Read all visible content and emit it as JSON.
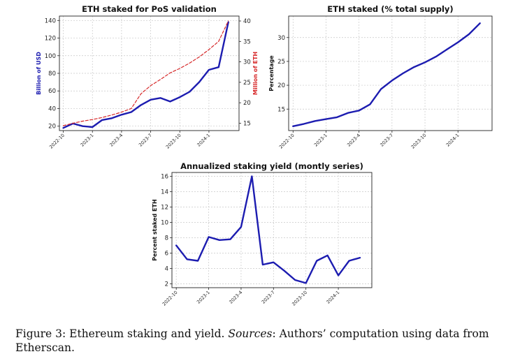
{
  "caption": {
    "label": "Figure 3:",
    "text1": "Ethereum staking and yield.",
    "sources_label": "Sources",
    "text2": ": Authors’ computation using data from Etherscan."
  },
  "chart_data": [
    {
      "type": "line",
      "title": "ETH staked for PoS validation",
      "xlabel": "",
      "x_ticks": [
        "2022-10",
        "2023-1",
        "2023-4",
        "2023-7",
        "2023-10",
        "2024-1"
      ],
      "grid": true,
      "y_left": {
        "label": "Billion of USD",
        "color": "#1c1cb0",
        "ylim": [
          15,
          145
        ],
        "ticks": [
          20,
          40,
          60,
          80,
          100,
          120,
          140
        ]
      },
      "y_right": {
        "label": "Million of ETH",
        "color": "#d62728",
        "ylim": [
          13.2,
          41.2
        ],
        "ticks": [
          15,
          20,
          25,
          30,
          35,
          40
        ]
      },
      "series": [
        {
          "axis": "left",
          "style": "solid",
          "color": "#1c1cb0",
          "x": [
            "2022-10",
            "2022-11",
            "2022-12",
            "2023-01",
            "2023-02",
            "2023-03",
            "2023-04",
            "2023-05",
            "2023-06",
            "2023-07",
            "2023-08",
            "2023-09",
            "2023-10",
            "2023-11",
            "2023-12",
            "2024-01",
            "2024-02",
            "2024-03"
          ],
          "values": [
            18,
            23,
            20,
            19,
            27,
            29,
            33,
            36,
            44,
            50,
            52,
            48,
            53,
            59,
            70,
            84,
            87,
            138
          ]
        },
        {
          "axis": "right",
          "style": "dashed",
          "color": "#d62728",
          "x": [
            "2022-10",
            "2022-11",
            "2022-12",
            "2023-01",
            "2023-02",
            "2023-03",
            "2023-04",
            "2023-05",
            "2023-06",
            "2023-07",
            "2023-08",
            "2023-09",
            "2023-10",
            "2023-11",
            "2023-12",
            "2024-01",
            "2024-02",
            "2024-03"
          ],
          "values": [
            14.4,
            15.0,
            15.5,
            15.9,
            16.4,
            17.0,
            17.7,
            18.6,
            22.2,
            24.2,
            25.7,
            27.3,
            28.4,
            29.7,
            31.2,
            33.0,
            35.0,
            40.0
          ]
        }
      ]
    },
    {
      "type": "line",
      "title": "ETH staked (% total supply)",
      "xlabel": "",
      "ylabel": "Percentage",
      "x_ticks": [
        "2022-10",
        "2023-1",
        "2023-4",
        "2023-7",
        "2023-10",
        "2024-1"
      ],
      "ylim": [
        10.5,
        34.5
      ],
      "y_ticks": [
        15,
        20,
        25,
        30
      ],
      "grid": true,
      "series": [
        {
          "color": "#1c1cb0",
          "x": [
            "2022-10",
            "2022-11",
            "2022-12",
            "2023-01",
            "2023-02",
            "2023-03",
            "2023-04",
            "2023-05",
            "2023-06",
            "2023-07",
            "2023-08",
            "2023-09",
            "2023-10",
            "2023-11",
            "2023-12",
            "2024-01",
            "2024-02",
            "2024-03"
          ],
          "values": [
            11.4,
            11.9,
            12.5,
            12.9,
            13.3,
            14.2,
            14.7,
            16.0,
            19.2,
            21.0,
            22.5,
            23.8,
            24.8,
            26.0,
            27.5,
            29.0,
            30.7,
            33.0
          ]
        }
      ]
    },
    {
      "type": "line",
      "title": "Annualized staking yield (montly series)",
      "xlabel": "",
      "ylabel": "Percent staked ETH",
      "x_ticks": [
        "2022-10",
        "2023-1",
        "2023-4",
        "2023-7",
        "2023-10",
        "2024-1"
      ],
      "ylim": [
        1.5,
        16.5
      ],
      "y_ticks": [
        2,
        4,
        6,
        8,
        10,
        12,
        14,
        16
      ],
      "grid": true,
      "series": [
        {
          "color": "#1c1cb0",
          "x": [
            "2022-10",
            "2022-11",
            "2022-12",
            "2023-01",
            "2023-02",
            "2023-03",
            "2023-04",
            "2023-05",
            "2023-06",
            "2023-07",
            "2023-08",
            "2023-09",
            "2023-10",
            "2023-11",
            "2023-12",
            "2024-01",
            "2024-02",
            "2024-03"
          ],
          "values": [
            7.0,
            5.2,
            5.0,
            8.1,
            7.7,
            7.8,
            9.4,
            16.0,
            4.5,
            4.8,
            3.7,
            2.5,
            2.1,
            5.0,
            5.7,
            3.1,
            5.0,
            5.4
          ]
        }
      ]
    }
  ]
}
